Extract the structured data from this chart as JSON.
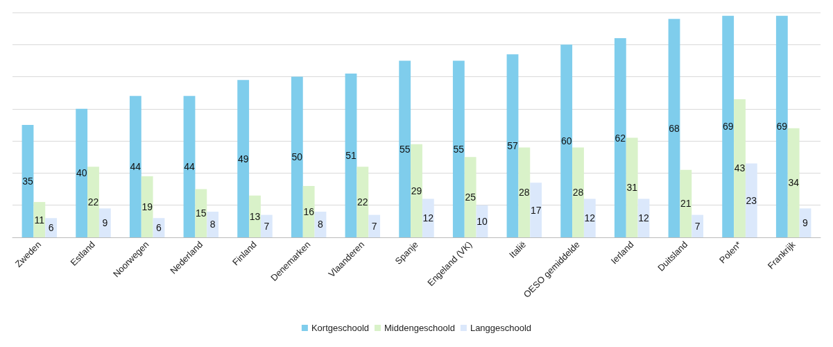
{
  "chart_data": {
    "type": "bar",
    "categories": [
      "Zweden",
      "Estland",
      "Noorwegen",
      "Nederland",
      "Finland",
      "Denemarken",
      "Vlaanderen",
      "Spanje",
      "Engeland (VK)",
      "Italië",
      "OESO gemiddelde",
      "Ierland",
      "Duitsland",
      "Polen*",
      "Frankrijk"
    ],
    "series": [
      {
        "name": "Kortgeschoold",
        "color": "#7fcdec",
        "values": [
          35,
          40,
          44,
          44,
          49,
          50,
          51,
          55,
          55,
          57,
          60,
          62,
          68,
          69,
          69
        ]
      },
      {
        "name": "Middengeschoold",
        "color": "#d9f2c9",
        "values": [
          11,
          22,
          19,
          15,
          13,
          16,
          22,
          29,
          25,
          28,
          28,
          31,
          21,
          43,
          34
        ]
      },
      {
        "name": "Langgeschoold",
        "color": "#dbe8fb",
        "values": [
          6,
          9,
          6,
          8,
          7,
          8,
          7,
          12,
          10,
          17,
          12,
          12,
          7,
          23,
          9
        ]
      }
    ],
    "ylim": [
      0,
      70
    ],
    "yticks": [
      {
        "value": 0,
        "label": null
      },
      {
        "value": 10,
        "label": null
      },
      {
        "value": 20,
        "label": null
      },
      {
        "value": 30,
        "label": null
      },
      {
        "value": 40,
        "label": null
      },
      {
        "value": 50,
        "label": null
      },
      {
        "value": 60,
        "label": null
      },
      {
        "value": 70,
        "label": null
      }
    ],
    "tick_labels": "x",
    "grid": "y",
    "legend": "bottom",
    "data_labels": true
  }
}
